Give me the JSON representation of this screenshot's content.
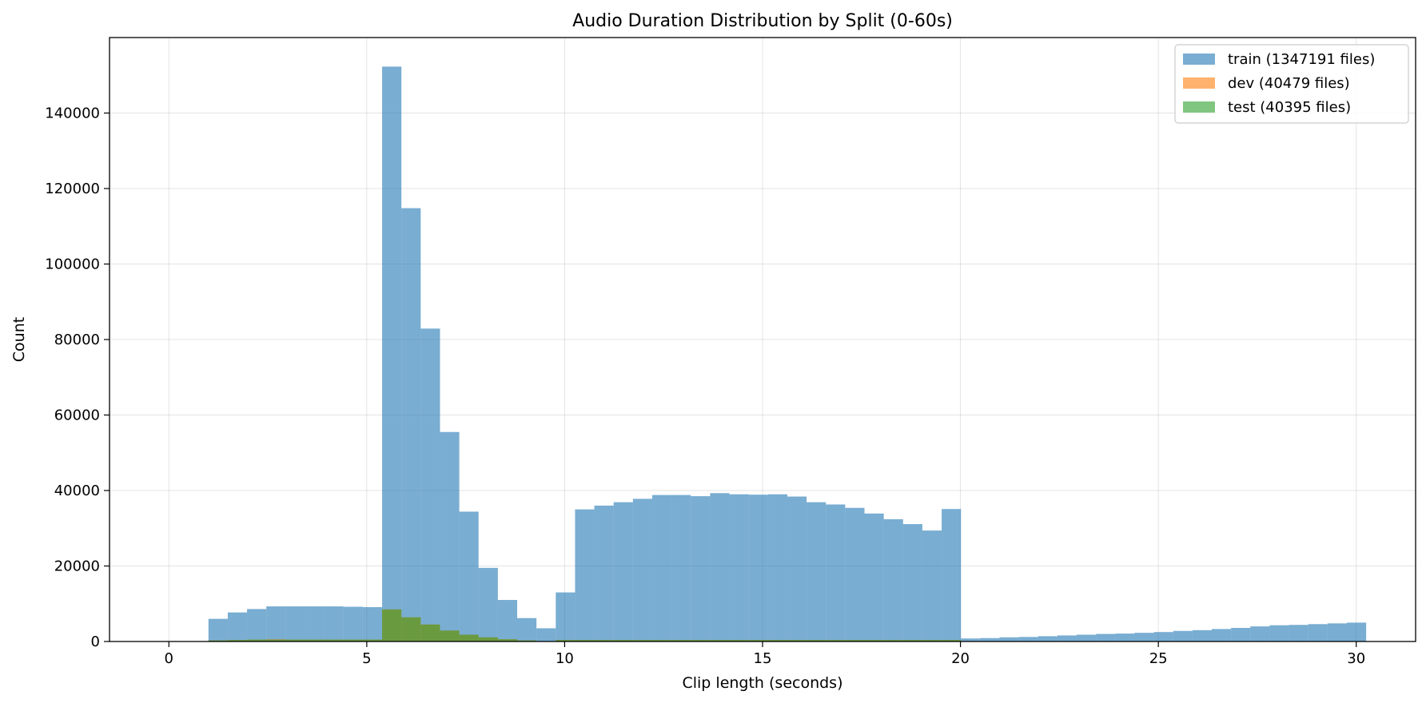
{
  "chart_data": {
    "type": "bar",
    "title": "Audio Duration Distribution by Split (0-60s)",
    "xlabel": "Clip length (seconds)",
    "ylabel": "Count",
    "xlim": [
      -1.5,
      31.5
    ],
    "ylim": [
      0,
      160000
    ],
    "xticks": [
      0,
      5,
      10,
      15,
      20,
      25,
      30
    ],
    "yticks": [
      0,
      20000,
      40000,
      60000,
      80000,
      100000,
      120000,
      140000
    ],
    "grid": true,
    "legend_position": "top-right",
    "bin_edges_start": 1.0,
    "bin_width": 0.4875,
    "series": [
      {
        "name": "train (1347191 files)",
        "color": "#1f77b4",
        "opacity": 0.6,
        "values": [
          6000,
          7700,
          8600,
          9300,
          9300,
          9300,
          9300,
          9200,
          9100,
          152300,
          114800,
          82900,
          55500,
          34400,
          19500,
          11000,
          6200,
          3500,
          13000,
          35000,
          36000,
          36900,
          37800,
          38800,
          38800,
          38500,
          39300,
          39000,
          38900,
          39000,
          38400,
          36900,
          36300,
          35400,
          33900,
          32400,
          31100,
          29400,
          35100,
          800,
          900,
          1100,
          1200,
          1400,
          1600,
          1800,
          2000,
          2100,
          2300,
          2500,
          2800,
          3000,
          3300,
          3600,
          4000,
          4300,
          4400,
          4600,
          4800,
          5000
        ]
      },
      {
        "name": "dev (40479 files)",
        "color": "#ff7f0e",
        "opacity": 0.6,
        "values": [
          300,
          400,
          500,
          600,
          500,
          500,
          500,
          500,
          500,
          8500,
          6400,
          4500,
          2900,
          1800,
          1100,
          600,
          300,
          100,
          400,
          400,
          400,
          400,
          400,
          400,
          400,
          400,
          400,
          400,
          400,
          400,
          400,
          400,
          400,
          400,
          400,
          400,
          400,
          400,
          400,
          0,
          0,
          0,
          0,
          0,
          0,
          0,
          0,
          0,
          0,
          0,
          0,
          0,
          0,
          0,
          0,
          0,
          0,
          0,
          0,
          0
        ]
      },
      {
        "name": "test (40395 files)",
        "color": "#2ca02c",
        "opacity": 0.6,
        "values": [
          300,
          400,
          500,
          500,
          500,
          500,
          500,
          500,
          500,
          8500,
          6400,
          4500,
          2900,
          1800,
          1100,
          600,
          300,
          100,
          400,
          400,
          400,
          400,
          400,
          400,
          400,
          400,
          400,
          400,
          400,
          400,
          400,
          400,
          400,
          400,
          400,
          400,
          400,
          400,
          400,
          0,
          0,
          0,
          0,
          0,
          0,
          0,
          0,
          0,
          0,
          0,
          0,
          0,
          0,
          0,
          0,
          0,
          0,
          0,
          0,
          0
        ]
      }
    ]
  }
}
